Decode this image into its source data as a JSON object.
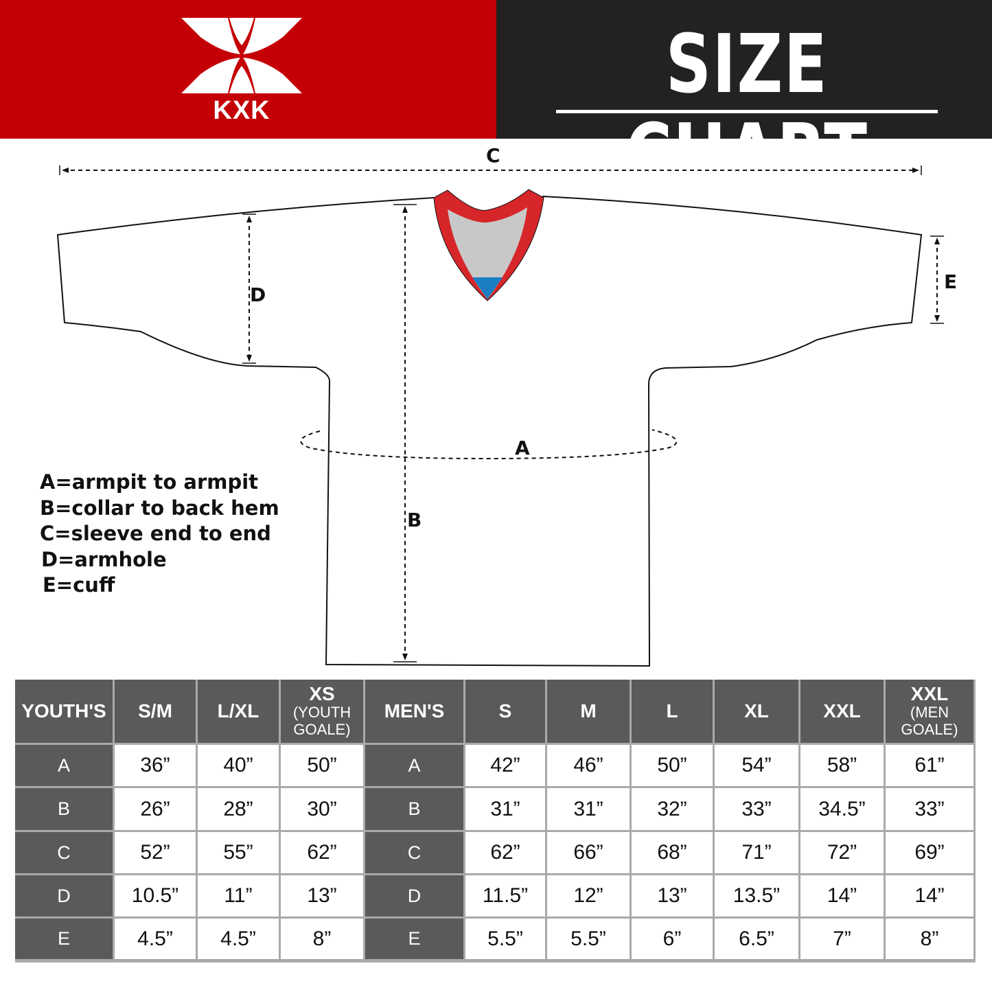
{
  "header": {
    "brand": "KXK",
    "title": "SIZE CHART",
    "colors": {
      "left_banner": "#c40006",
      "right_banner": "#222222"
    }
  },
  "diagram": {
    "labels": {
      "A": "A",
      "B": "B",
      "C": "C",
      "D": "D",
      "E": "E"
    },
    "jersey_colors": {
      "collar": "#d7262a",
      "neck_inner": "#c8c8c8",
      "neck_tip": "#1b7dc2"
    }
  },
  "legend": [
    "A=armpit to armpit",
    "B=collar to back hem",
    "C=sleeve end to end",
    "D=armhole",
    "E=cuff"
  ],
  "table": {
    "headers": [
      {
        "main": "YOUTH'S",
        "sub": ""
      },
      {
        "main": "S/M",
        "sub": ""
      },
      {
        "main": "L/XL",
        "sub": ""
      },
      {
        "main": "XS",
        "sub": "(YOUTH GOALE)"
      },
      {
        "main": "MEN'S",
        "sub": ""
      },
      {
        "main": "S",
        "sub": ""
      },
      {
        "main": "M",
        "sub": ""
      },
      {
        "main": "L",
        "sub": ""
      },
      {
        "main": "XL",
        "sub": ""
      },
      {
        "main": "XXL",
        "sub": ""
      },
      {
        "main": "XXL",
        "sub": "(MEN GOALE)"
      }
    ],
    "rows": [
      [
        "A",
        "36”",
        "40”",
        "50”",
        "A",
        "42”",
        "46”",
        "50”",
        "54”",
        "58”",
        "61”"
      ],
      [
        "B",
        "26”",
        "28”",
        "30”",
        "B",
        "31”",
        "31”",
        "32”",
        "33”",
        "34.5”",
        "33”"
      ],
      [
        "C",
        "52”",
        "55”",
        "62”",
        "C",
        "62”",
        "66”",
        "68”",
        "71”",
        "72”",
        "69”"
      ],
      [
        "D",
        "10.5”",
        "11”",
        "13”",
        "D",
        "11.5”",
        "12”",
        "13”",
        "13.5”",
        "14”",
        "14”"
      ],
      [
        "E",
        "4.5”",
        "4.5”",
        "8”",
        "E",
        "5.5”",
        "5.5”",
        "6”",
        "6.5”",
        "7”",
        "8”"
      ]
    ]
  }
}
